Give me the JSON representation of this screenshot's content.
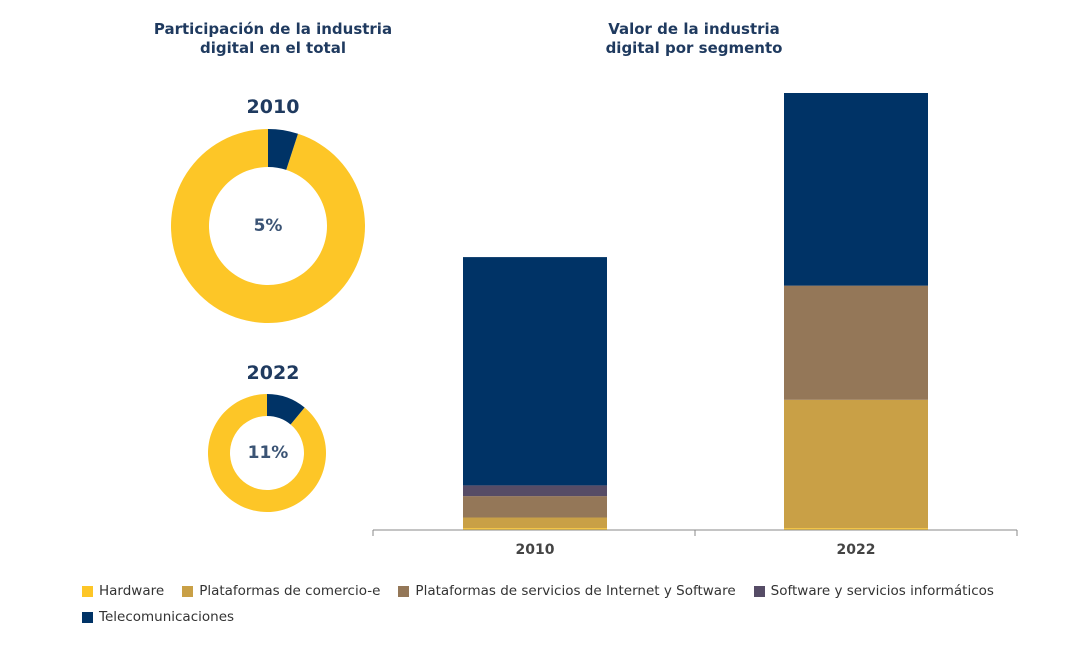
{
  "colors": {
    "hardware": "#fdc627",
    "comercio": "#c9a046",
    "internet": "#947758",
    "software": "#564c66",
    "telecom": "#003366",
    "axis": "#888888"
  },
  "chart_data": [
    {
      "type": "pie",
      "title": "Participación de la industria digital en el total",
      "title_lines": [
        "Participación de la industria",
        "digital en el total"
      ],
      "donuts": [
        {
          "year": "2010",
          "label": "5%",
          "share": 5
        },
        {
          "year": "2022",
          "label": "11%",
          "share": 11
        }
      ]
    },
    {
      "type": "bar",
      "stacked": true,
      "title": "Valor de la industria digital por segmento",
      "title_lines": [
        "Valor de la industria",
        "digital por segmento"
      ],
      "categories": [
        "2010",
        "2022"
      ],
      "series": [
        {
          "name": "Hardware",
          "key": "hardware",
          "values": [
            1,
            1
          ]
        },
        {
          "name": "Plataformas de comercio-e",
          "key": "comercio",
          "values": [
            6,
            72
          ]
        },
        {
          "name": "Plataformas de servicios de Internet y Software",
          "key": "internet",
          "values": [
            12,
            64
          ]
        },
        {
          "name": "Software y servicios informáticos",
          "key": "software",
          "values": [
            6,
            0
          ]
        },
        {
          "name": "Telecomunicaciones",
          "key": "telecom",
          "values": [
            128,
            108
          ]
        }
      ],
      "ylim": [
        0,
        245
      ]
    }
  ]
}
